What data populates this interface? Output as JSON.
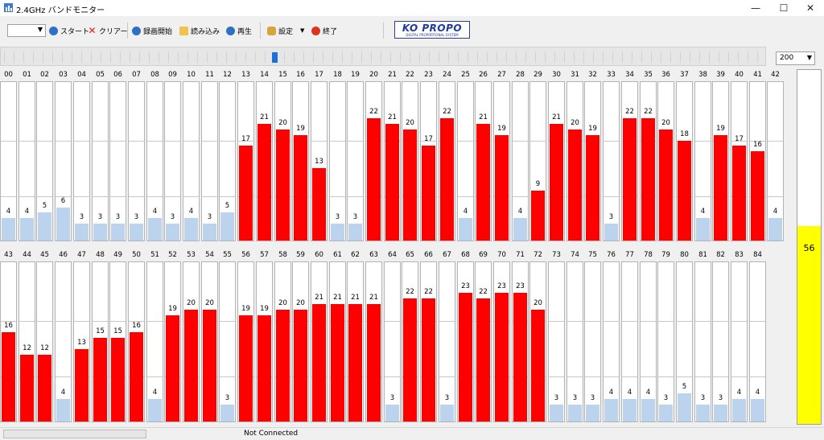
{
  "window": {
    "title": "2.4GHz バンドモニター",
    "minimize": "—",
    "maximize": "☐",
    "close": "✕"
  },
  "toolbar": {
    "combo_value": "",
    "start_label": "スタート",
    "clear_label": "クリアー",
    "record_label": "録画開始",
    "load_label": "読み込み",
    "play_label": "再生",
    "settings_label": "設定",
    "exit_label": "終了"
  },
  "logo": {
    "main": "KO PROPO",
    "sub": "DIGITAL PROPORTIONAL SYSTEM"
  },
  "scale": {
    "value": "200"
  },
  "colors": {
    "high": "#ff0000",
    "low": "#bcd3ee",
    "level": "#ffff00"
  },
  "channels": [
    {
      "ch": "00",
      "v": 4
    },
    {
      "ch": "01",
      "v": 4
    },
    {
      "ch": "02",
      "v": 5
    },
    {
      "ch": "03",
      "v": 6
    },
    {
      "ch": "04",
      "v": 3
    },
    {
      "ch": "05",
      "v": 3
    },
    {
      "ch": "06",
      "v": 3
    },
    {
      "ch": "07",
      "v": 3
    },
    {
      "ch": "08",
      "v": 4
    },
    {
      "ch": "09",
      "v": 3
    },
    {
      "ch": "10",
      "v": 4
    },
    {
      "ch": "11",
      "v": 3
    },
    {
      "ch": "12",
      "v": 5
    },
    {
      "ch": "13",
      "v": 17
    },
    {
      "ch": "14",
      "v": 21
    },
    {
      "ch": "15",
      "v": 20
    },
    {
      "ch": "16",
      "v": 19
    },
    {
      "ch": "17",
      "v": 13
    },
    {
      "ch": "18",
      "v": 3
    },
    {
      "ch": "19",
      "v": 3
    },
    {
      "ch": "20",
      "v": 22
    },
    {
      "ch": "21",
      "v": 21
    },
    {
      "ch": "22",
      "v": 20
    },
    {
      "ch": "23",
      "v": 17
    },
    {
      "ch": "24",
      "v": 22
    },
    {
      "ch": "25",
      "v": 4
    },
    {
      "ch": "26",
      "v": 21
    },
    {
      "ch": "27",
      "v": 19
    },
    {
      "ch": "28",
      "v": 4
    },
    {
      "ch": "29",
      "v": 9
    },
    {
      "ch": "30",
      "v": 21
    },
    {
      "ch": "31",
      "v": 20
    },
    {
      "ch": "32",
      "v": 19
    },
    {
      "ch": "33",
      "v": 3
    },
    {
      "ch": "34",
      "v": 22
    },
    {
      "ch": "35",
      "v": 22
    },
    {
      "ch": "36",
      "v": 20
    },
    {
      "ch": "37",
      "v": 18
    },
    {
      "ch": "38",
      "v": 4
    },
    {
      "ch": "39",
      "v": 19
    },
    {
      "ch": "40",
      "v": 17
    },
    {
      "ch": "41",
      "v": 16
    },
    {
      "ch": "42",
      "v": 4
    },
    {
      "ch": "43",
      "v": 16
    },
    {
      "ch": "44",
      "v": 12
    },
    {
      "ch": "45",
      "v": 12
    },
    {
      "ch": "46",
      "v": 4
    },
    {
      "ch": "47",
      "v": 13
    },
    {
      "ch": "48",
      "v": 15
    },
    {
      "ch": "49",
      "v": 15
    },
    {
      "ch": "50",
      "v": 16
    },
    {
      "ch": "51",
      "v": 4
    },
    {
      "ch": "52",
      "v": 19
    },
    {
      "ch": "53",
      "v": 20
    },
    {
      "ch": "54",
      "v": 20
    },
    {
      "ch": "55",
      "v": 3
    },
    {
      "ch": "56",
      "v": 19
    },
    {
      "ch": "57",
      "v": 19
    },
    {
      "ch": "58",
      "v": 20
    },
    {
      "ch": "59",
      "v": 20
    },
    {
      "ch": "60",
      "v": 21
    },
    {
      "ch": "61",
      "v": 21
    },
    {
      "ch": "62",
      "v": 21
    },
    {
      "ch": "63",
      "v": 21
    },
    {
      "ch": "64",
      "v": 3
    },
    {
      "ch": "65",
      "v": 22
    },
    {
      "ch": "66",
      "v": 22
    },
    {
      "ch": "67",
      "v": 3
    },
    {
      "ch": "68",
      "v": 23
    },
    {
      "ch": "69",
      "v": 22
    },
    {
      "ch": "70",
      "v": 23
    },
    {
      "ch": "71",
      "v": 23
    },
    {
      "ch": "72",
      "v": 20
    },
    {
      "ch": "73",
      "v": 3
    },
    {
      "ch": "74",
      "v": 3
    },
    {
      "ch": "75",
      "v": 3
    },
    {
      "ch": "76",
      "v": 4
    },
    {
      "ch": "77",
      "v": 4
    },
    {
      "ch": "78",
      "v": 4
    },
    {
      "ch": "79",
      "v": 3
    },
    {
      "ch": "80",
      "v": 5
    },
    {
      "ch": "81",
      "v": 3
    },
    {
      "ch": "82",
      "v": 3
    },
    {
      "ch": "83",
      "v": 4
    },
    {
      "ch": "84",
      "v": 4
    }
  ],
  "level": {
    "value": 56
  },
  "status": {
    "text": "Not Connected"
  }
}
